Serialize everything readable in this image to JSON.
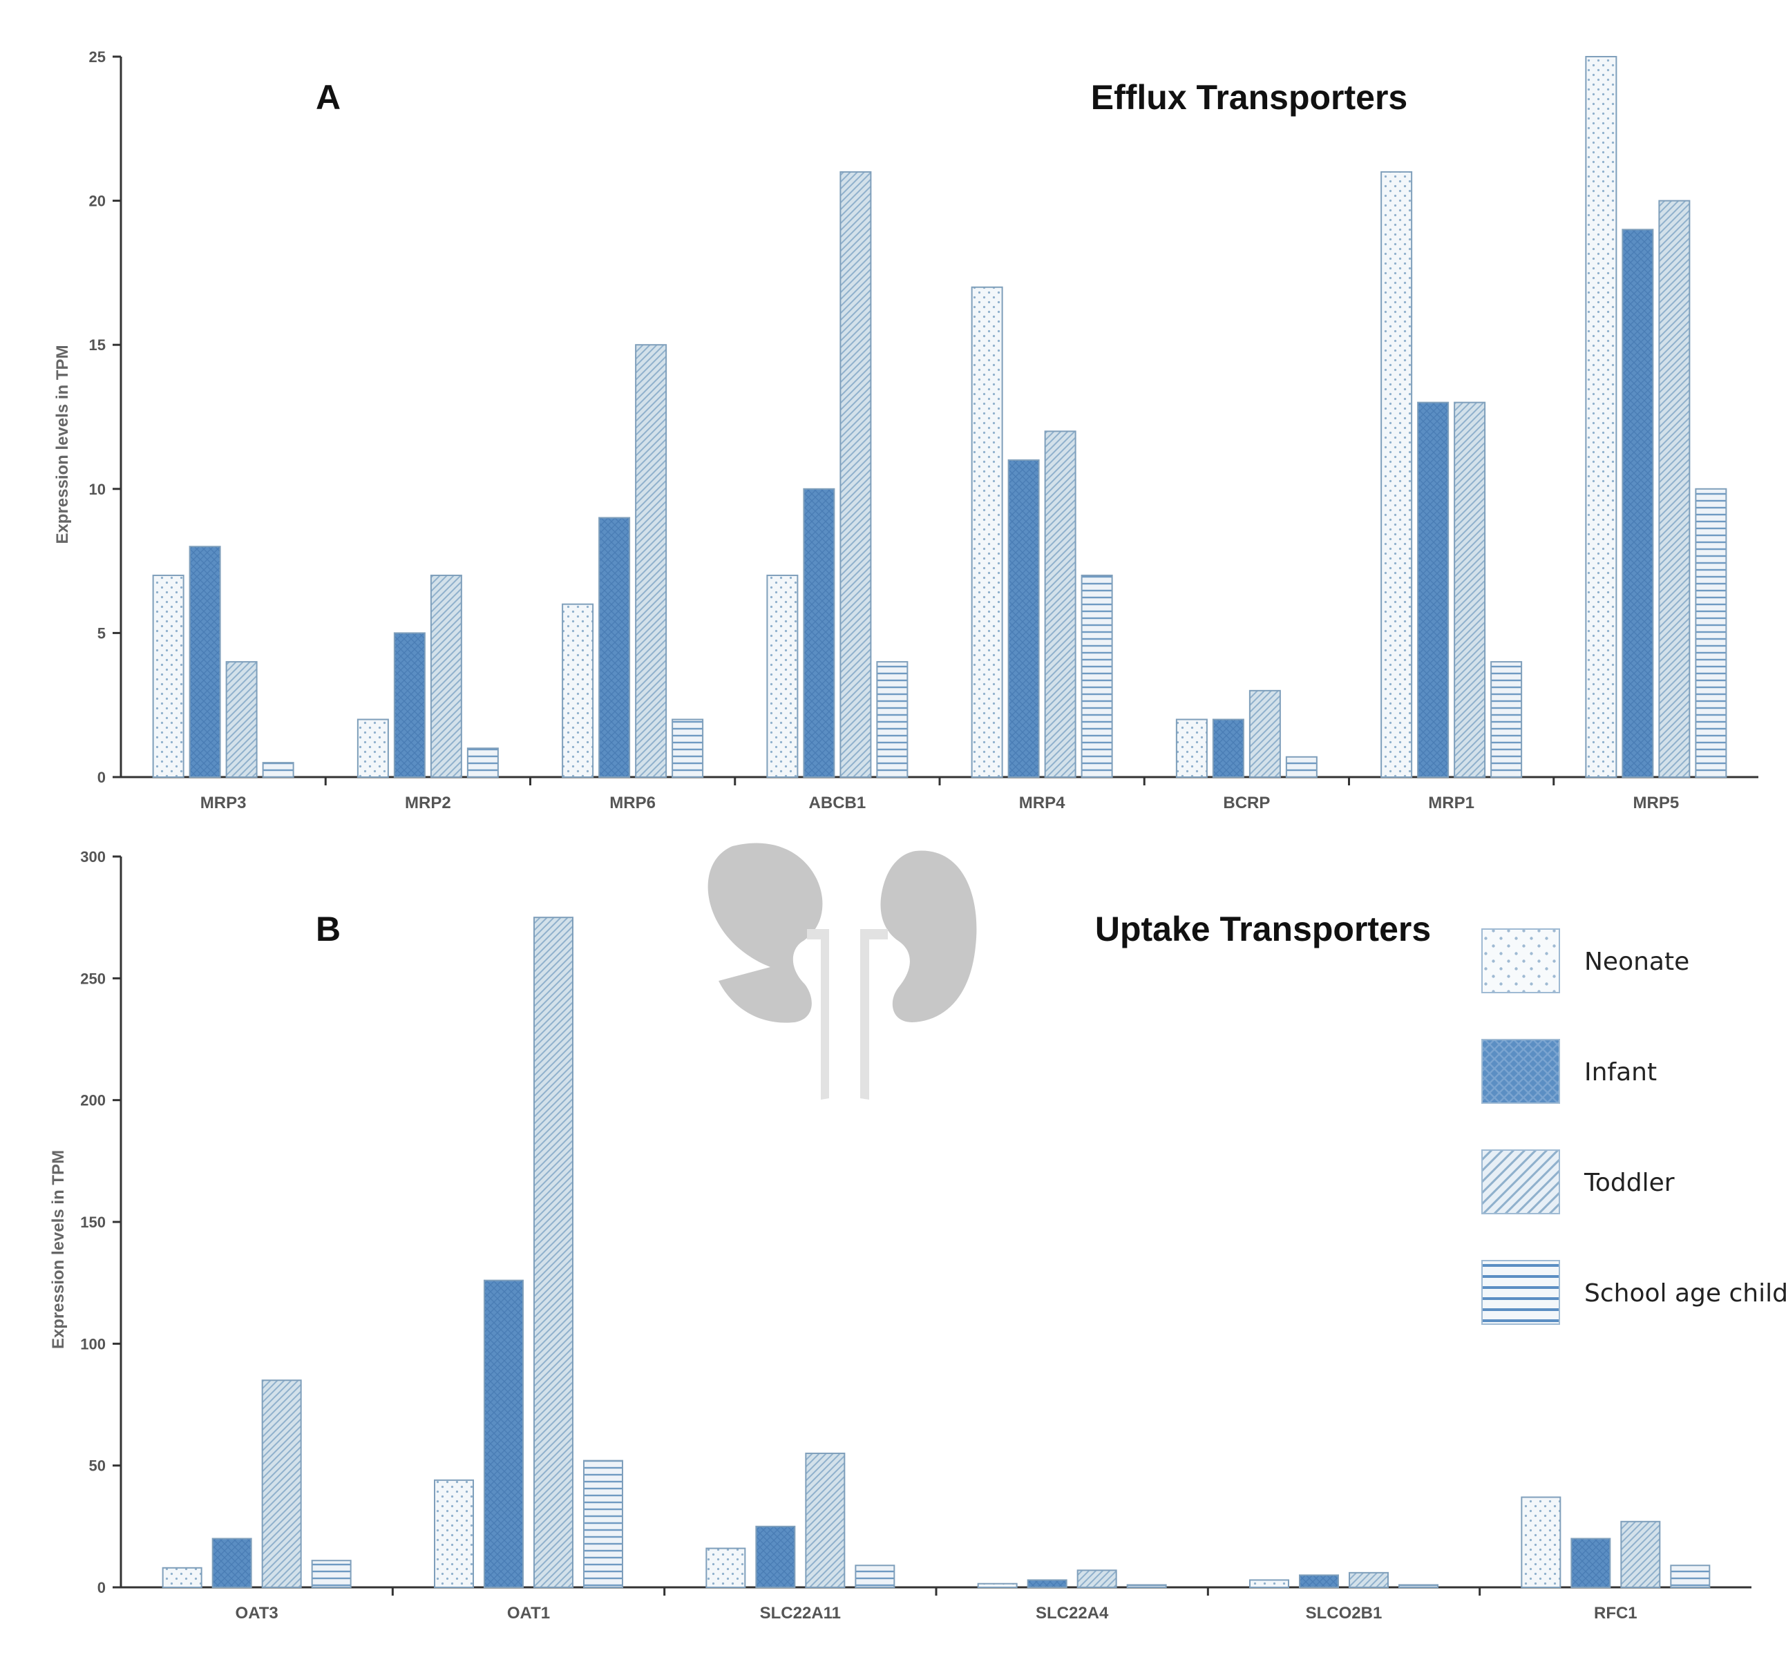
{
  "legend": [
    {
      "key": "neonate",
      "label": "Neonate",
      "pattern": "dots"
    },
    {
      "key": "infant",
      "label": "Infant",
      "pattern": "crosshatch"
    },
    {
      "key": "toddler",
      "label": "Toddler",
      "pattern": "diagonal"
    },
    {
      "key": "school",
      "label": "School age child",
      "pattern": "horizontal"
    }
  ],
  "colors": {
    "neonate_fill": "#f3f7fa",
    "infant_fill": "#5b8ec3",
    "toddler_fill": "#d3e1ea",
    "school_fill": "#e6eef5",
    "bar_stroke": "#7f9fbb",
    "axis": "#333333",
    "kidney": "#c7c7c7"
  },
  "chart_data": [
    {
      "type": "bar",
      "panel_letter": "A",
      "title": "Efflux Transporters",
      "ylabel": "Expression levels in TPM",
      "xlabel": "",
      "ylim": [
        0,
        25
      ],
      "yticks": [
        0,
        5,
        10,
        15,
        20,
        25
      ],
      "categories": [
        "MRP3",
        "MRP2",
        "MRP6",
        "ABCB1",
        "MRP4",
        "BCRP",
        "MRP1",
        "MRP5"
      ],
      "series": [
        {
          "name": "Neonate",
          "values": [
            7,
            2,
            6,
            7,
            17,
            2,
            21,
            25
          ]
        },
        {
          "name": "Infant",
          "values": [
            8,
            5,
            9,
            10,
            11,
            2,
            13,
            19
          ]
        },
        {
          "name": "Toddler",
          "values": [
            4,
            7,
            15,
            21,
            12,
            3,
            13,
            20
          ]
        },
        {
          "name": "School age child",
          "values": [
            0.5,
            1,
            2,
            4,
            7,
            0.7,
            4,
            10
          ]
        }
      ]
    },
    {
      "type": "bar",
      "panel_letter": "B",
      "title": "Uptake Transporters",
      "ylabel": "Expression levels in TPM",
      "xlabel": "",
      "ylim": [
        0,
        300
      ],
      "yticks": [
        0,
        50,
        100,
        150,
        200,
        250,
        300
      ],
      "categories": [
        "OAT3",
        "OAT1",
        "SLC22A11",
        "SLC22A4",
        "SLCO2B1",
        "RFC1"
      ],
      "series": [
        {
          "name": "Neonate",
          "values": [
            8,
            44,
            16,
            1.5,
            3,
            37
          ]
        },
        {
          "name": "Infant",
          "values": [
            20,
            126,
            25,
            3,
            5,
            20
          ]
        },
        {
          "name": "Toddler",
          "values": [
            85,
            275,
            55,
            7,
            6,
            27
          ]
        },
        {
          "name": "School age child",
          "values": [
            11,
            52,
            9,
            1,
            1,
            9
          ]
        }
      ]
    }
  ]
}
